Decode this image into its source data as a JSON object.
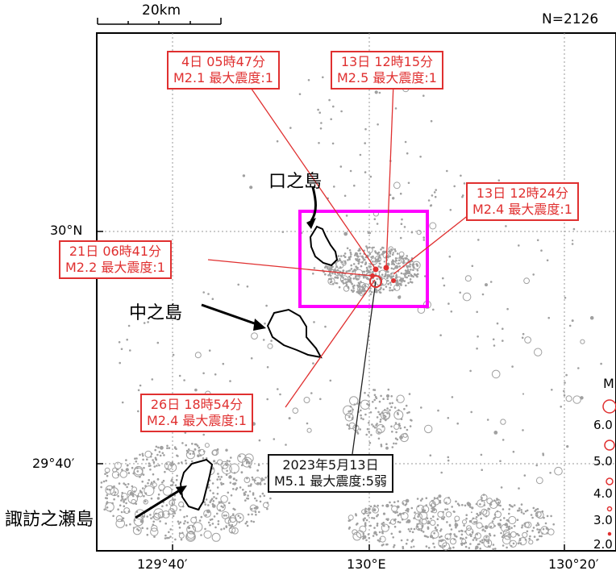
{
  "scale_bar": {
    "label": "20km"
  },
  "count_label": "N=2126",
  "axes": {
    "lat_labels": [
      "30°N",
      "29°40′"
    ],
    "lon_labels": [
      "129°40′",
      "130°E",
      "130°20′"
    ]
  },
  "islands": {
    "kuchinoshima": "口之島",
    "nakanoshima": "中之島",
    "suwanosejima": "諏訪之瀬島"
  },
  "callouts": [
    {
      "id": "c4",
      "time": "4日 05時47分",
      "detail": "M2.1 最大震度:1"
    },
    {
      "id": "c13a",
      "time": "13日 12時15分",
      "detail": "M2.5 最大震度:1"
    },
    {
      "id": "c13b",
      "time": "13日 12時24分",
      "detail": "M2.4 最大震度:1"
    },
    {
      "id": "c21",
      "time": "21日 06時41分",
      "detail": "M2.2 最大震度:1"
    },
    {
      "id": "c26",
      "time": "26日 18時54分",
      "detail": "M2.4 最大震度:1"
    }
  ],
  "main_event": {
    "date": "2023年5月13日",
    "detail": "M5.1 最大震度:5弱"
  },
  "legend": {
    "title": "M",
    "entries": [
      "6.0",
      "5.0",
      "4.0",
      "3.0",
      "2.0"
    ]
  },
  "colors": {
    "highlight_box": "#ff00ff",
    "callout_red": "#e03030",
    "epicenters": "#a0a0a0",
    "frame": "#000000"
  }
}
